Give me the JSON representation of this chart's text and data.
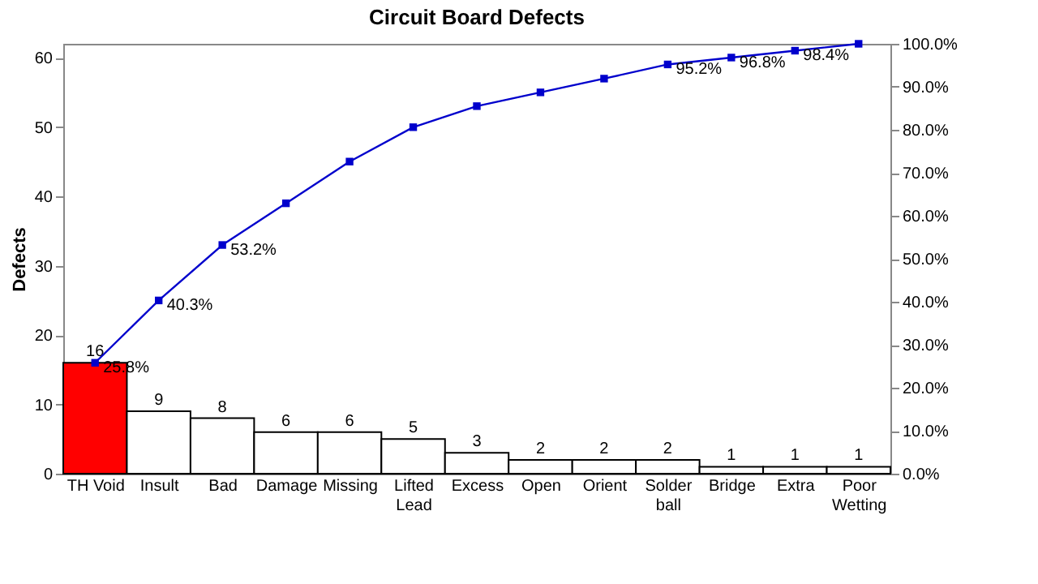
{
  "chart_data": {
    "type": "bar",
    "title": "Circuit Board Defects",
    "ylabel": "Defects",
    "categories": [
      "TH Void",
      "Insult",
      "Bad",
      "Damage",
      "Missing",
      "Lifted Lead",
      "Excess",
      "Open",
      "Orient",
      "Solder ball",
      "Bridge",
      "Extra",
      "Poor Wetting"
    ],
    "series": [
      {
        "values": [
          16,
          9,
          8,
          6,
          6,
          5,
          3,
          2,
          2,
          2,
          1,
          1,
          1
        ],
        "colors": [
          "#ff0000",
          "#ffffff",
          "#ffffff",
          "#ffffff",
          "#ffffff",
          "#ffffff",
          "#ffffff",
          "#ffffff",
          "#ffffff",
          "#ffffff",
          "#ffffff",
          "#ffffff",
          "#ffffff"
        ]
      },
      {
        "type": "line",
        "axis": "y2",
        "color": "#0000cc",
        "marker": "square",
        "values": [
          25.8,
          40.3,
          53.2,
          62.9,
          72.6,
          80.6,
          85.5,
          88.7,
          91.9,
          95.2,
          96.8,
          98.4,
          100.0
        ],
        "value_labels": [
          "25.8%",
          "40.3%",
          "53.2%",
          null,
          null,
          null,
          null,
          null,
          null,
          "95.2%",
          "96.8%",
          "98.4%",
          null
        ]
      }
    ],
    "data_labels": true,
    "ylim": [
      0,
      62
    ],
    "yticks": [
      0,
      10,
      20,
      30,
      40,
      50,
      60
    ],
    "y2lim": [
      0,
      100
    ],
    "y2ticks": [
      {
        "value": 0,
        "label": "0.0%"
      },
      {
        "value": 10,
        "label": "10.0%"
      },
      {
        "value": 20,
        "label": "20.0%"
      },
      {
        "value": 30,
        "label": "30.0%"
      },
      {
        "value": 40,
        "label": "40.0%"
      },
      {
        "value": 50,
        "label": "50.0%"
      },
      {
        "value": 60,
        "label": "60.0%"
      },
      {
        "value": 70,
        "label": "70.0%"
      },
      {
        "value": 80,
        "label": "80.0%"
      },
      {
        "value": 90,
        "label": "90.0%"
      },
      {
        "value": 100,
        "label": "100.0%"
      }
    ]
  }
}
